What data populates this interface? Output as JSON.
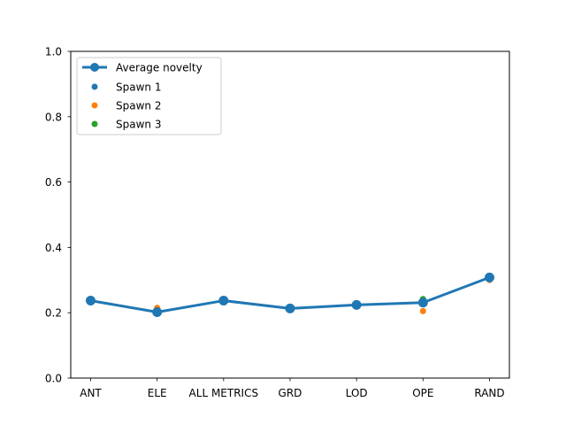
{
  "chart_data": {
    "type": "line",
    "categories": [
      "ANT",
      "ELE",
      "ALL METRICS",
      "GRD",
      "LOD",
      "OPE",
      "RAND"
    ],
    "ylim": [
      0.0,
      1.0
    ],
    "yticks": [
      "0.0",
      "0.2",
      "0.4",
      "0.6",
      "0.8",
      "1.0"
    ],
    "grid": false,
    "legend_position": "upper-left",
    "series": [
      {
        "name": "Average novelty",
        "kind": "line",
        "color": "#1f77b4",
        "values": [
          0.237,
          0.202,
          0.237,
          0.213,
          0.224,
          0.231,
          0.308
        ]
      },
      {
        "name": "Spawn 1",
        "kind": "scatter",
        "color": "#1f77b4",
        "values": [
          0.237,
          0.201,
          0.237,
          0.211,
          0.224,
          0.226,
          0.312
        ]
      },
      {
        "name": "Spawn 2",
        "kind": "scatter",
        "color": "#ff7f0e",
        "values": [
          0.237,
          0.215,
          0.237,
          0.213,
          0.224,
          0.205,
          0.3
        ]
      },
      {
        "name": "Spawn 3",
        "kind": "scatter",
        "color": "#2ca02c",
        "values": [
          0.237,
          0.207,
          0.237,
          0.213,
          0.224,
          0.242,
          0.309
        ]
      }
    ]
  }
}
